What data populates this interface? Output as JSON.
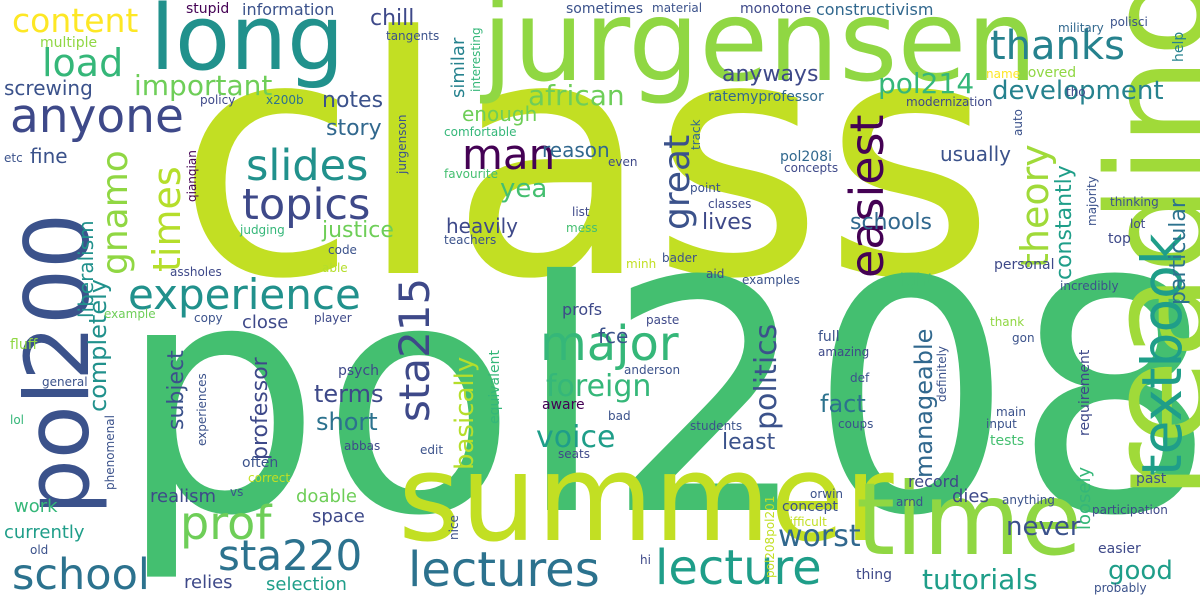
{
  "words": [
    {
      "text": "class",
      "color": "#c2df23"
    },
    {
      "text": "pol208",
      "color": "#44bf70"
    },
    {
      "text": "readings",
      "color": "#a0da39"
    },
    {
      "text": "jurgensen",
      "color": "#90d743"
    },
    {
      "text": "summer",
      "color": "#c2df23"
    },
    {
      "text": "pol200",
      "color": "#3b528b"
    },
    {
      "text": "time",
      "color": "#90d743"
    },
    {
      "text": "long",
      "color": "#21918c"
    },
    {
      "text": "textbook",
      "color": "#1f9e89"
    },
    {
      "text": "lectures",
      "color": "#2c728e"
    },
    {
      "text": "lecture",
      "color": "#1f9e89"
    },
    {
      "text": "school",
      "color": "#2c728e"
    },
    {
      "text": "anyone",
      "color": "#3e4989"
    },
    {
      "text": "experience",
      "color": "#21918c"
    },
    {
      "text": "major",
      "color": "#35b779"
    },
    {
      "text": "topics",
      "color": "#3e4989"
    },
    {
      "text": "slides",
      "color": "#21918c"
    },
    {
      "text": "prof",
      "color": "#6ece58"
    },
    {
      "text": "sta220",
      "color": "#2c728e"
    },
    {
      "text": "sta215",
      "color": "#3e4989"
    },
    {
      "text": "content",
      "color": "#fde725"
    },
    {
      "text": "load",
      "color": "#35b779"
    },
    {
      "text": "thanks",
      "color": "#26828e"
    },
    {
      "text": "man",
      "color": "#440154"
    },
    {
      "text": "great",
      "color": "#3b528b"
    },
    {
      "text": "easiest",
      "color": "#440154"
    },
    {
      "text": "theory",
      "color": "#a0da39"
    },
    {
      "text": "times",
      "color": "#b5de2b"
    },
    {
      "text": "gnamo",
      "color": "#90d743"
    },
    {
      "text": "foreign",
      "color": "#35b779"
    },
    {
      "text": "voice",
      "color": "#1f9e89"
    },
    {
      "text": "politics",
      "color": "#3b528b"
    },
    {
      "text": "african",
      "color": "#6ece58"
    },
    {
      "text": "important",
      "color": "#6ece58"
    },
    {
      "text": "pol214",
      "color": "#35b779"
    },
    {
      "text": "development",
      "color": "#26828e"
    },
    {
      "text": "worst",
      "color": "#31688e"
    },
    {
      "text": "tutorials",
      "color": "#1f9e89"
    },
    {
      "text": "good",
      "color": "#1f9e89"
    },
    {
      "text": "never",
      "color": "#3b528b"
    },
    {
      "text": "basically",
      "color": "#b5de2b"
    },
    {
      "text": "manageable",
      "color": "#31688e"
    },
    {
      "text": "particular",
      "color": "#2c728e"
    },
    {
      "text": "constantly",
      "color": "#1f9e89"
    },
    {
      "text": "yea",
      "color": "#44bf70"
    },
    {
      "text": "completely",
      "color": "#21918c"
    },
    {
      "text": "liberalism",
      "color": "#21918c"
    },
    {
      "text": "professor",
      "color": "#3e4989"
    },
    {
      "text": "subject",
      "color": "#3b528b"
    },
    {
      "text": "fce",
      "color": "#3b528b"
    },
    {
      "text": "terms",
      "color": "#3e4989"
    },
    {
      "text": "short",
      "color": "#2c728e"
    },
    {
      "text": "fact",
      "color": "#2c728e"
    },
    {
      "text": "least",
      "color": "#3b528b"
    },
    {
      "text": "notes",
      "color": "#3b528b"
    },
    {
      "text": "story",
      "color": "#31688e"
    },
    {
      "text": "enough",
      "color": "#6ece58"
    },
    {
      "text": "anyways",
      "color": "#3e4989"
    },
    {
      "text": "reason",
      "color": "#31688e"
    },
    {
      "text": "lives",
      "color": "#3e4989"
    },
    {
      "text": "schools",
      "color": "#31688e"
    },
    {
      "text": "usually",
      "color": "#3b528b"
    },
    {
      "text": "justice",
      "color": "#6ece58"
    },
    {
      "text": "heavily",
      "color": "#3e4989"
    },
    {
      "text": "screwing",
      "color": "#3b528b"
    },
    {
      "text": "chill",
      "color": "#3e4989"
    },
    {
      "text": "fine",
      "color": "#3b528b"
    },
    {
      "text": "similar",
      "color": "#26828e"
    },
    {
      "text": "constructivism",
      "color": "#31688e"
    },
    {
      "text": "sometimes",
      "color": "#3b528b"
    },
    {
      "text": "information",
      "color": "#3b528b"
    },
    {
      "text": "stupid",
      "color": "#440154"
    },
    {
      "text": "multiple",
      "color": "#90d743"
    },
    {
      "text": "material",
      "color": "#3b528b"
    },
    {
      "text": "monotone",
      "color": "#3e4989"
    },
    {
      "text": "tangents",
      "color": "#3b528b"
    },
    {
      "text": "interesting",
      "color": "#35b779"
    },
    {
      "text": "military",
      "color": "#31688e"
    },
    {
      "text": "polisci",
      "color": "#3b528b"
    },
    {
      "text": "help",
      "color": "#26828e"
    },
    {
      "text": "covered",
      "color": "#90d743"
    },
    {
      "text": "name",
      "color": "#fde725"
    },
    {
      "text": "ratemyprofessor",
      "color": "#31688e"
    },
    {
      "text": "policy",
      "color": "#3e4989"
    },
    {
      "text": "x200b",
      "color": "#2c728e"
    },
    {
      "text": "jurgenson",
      "color": "#3b528b"
    },
    {
      "text": "comfortable",
      "color": "#35b779"
    },
    {
      "text": "modernization",
      "color": "#3e4989"
    },
    {
      "text": "auto",
      "color": "#3b528b"
    },
    {
      "text": "tho",
      "color": "#3e4989"
    },
    {
      "text": "track",
      "color": "#31688e"
    },
    {
      "text": "even",
      "color": "#3e4989"
    },
    {
      "text": "pol208i",
      "color": "#31688e"
    },
    {
      "text": "concepts",
      "color": "#3e4989"
    },
    {
      "text": "favourite",
      "color": "#44bf70"
    },
    {
      "text": "point",
      "color": "#3b528b"
    },
    {
      "text": "classes",
      "color": "#3e4989"
    },
    {
      "text": "majority",
      "color": "#3b528b"
    },
    {
      "text": "thinking",
      "color": "#3b528b"
    },
    {
      "text": "lot",
      "color": "#3e4989"
    },
    {
      "text": "etc",
      "color": "#3b528b"
    },
    {
      "text": "qianqian",
      "color": "#440154"
    },
    {
      "text": "list",
      "color": "#3e4989"
    },
    {
      "text": "mess",
      "color": "#44bf70"
    },
    {
      "text": "judging",
      "color": "#35b779"
    },
    {
      "text": "code",
      "color": "#3b528b"
    },
    {
      "text": "teachers",
      "color": "#3b528b"
    },
    {
      "text": "able",
      "color": "#b5de2b"
    },
    {
      "text": "assholes",
      "color": "#3e4989"
    },
    {
      "text": "minh",
      "color": "#c2df23"
    },
    {
      "text": "bader",
      "color": "#3b528b"
    },
    {
      "text": "top",
      "color": "#3e4989"
    },
    {
      "text": "personal",
      "color": "#3e4989"
    },
    {
      "text": "incredibly",
      "color": "#3b528b"
    },
    {
      "text": "aid",
      "color": "#3e4989"
    },
    {
      "text": "examples",
      "color": "#3b528b"
    },
    {
      "text": "right",
      "color": "#44bf70"
    },
    {
      "text": "example",
      "color": "#6ece58"
    },
    {
      "text": "copy",
      "color": "#3b528b"
    },
    {
      "text": "player",
      "color": "#3e4989"
    },
    {
      "text": "close",
      "color": "#3e4989"
    },
    {
      "text": "profs",
      "color": "#3e4989"
    },
    {
      "text": "paste",
      "color": "#3e4989"
    },
    {
      "text": "fluff",
      "color": "#90d743"
    },
    {
      "text": "full",
      "color": "#3b528b"
    },
    {
      "text": "amazing",
      "color": "#3e4989"
    },
    {
      "text": "thank",
      "color": "#90d743"
    },
    {
      "text": "gon",
      "color": "#3b528b"
    },
    {
      "text": "psych",
      "color": "#3e4989"
    },
    {
      "text": "anderson",
      "color": "#3b528b"
    },
    {
      "text": "def",
      "color": "#3b528b"
    },
    {
      "text": "definitely",
      "color": "#3b528b"
    },
    {
      "text": "requirement",
      "color": "#3e4989"
    },
    {
      "text": "general",
      "color": "#3b528b"
    },
    {
      "text": "experiences",
      "color": "#3b528b"
    },
    {
      "text": "equivalent",
      "color": "#35b779"
    },
    {
      "text": "aware",
      "color": "#440154"
    },
    {
      "text": "bad",
      "color": "#3b528b"
    },
    {
      "text": "main",
      "color": "#3b528b"
    },
    {
      "text": "lol",
      "color": "#35b779"
    },
    {
      "text": "abbas",
      "color": "#3e4989"
    },
    {
      "text": "edit",
      "color": "#3b528b"
    },
    {
      "text": "input",
      "color": "#3b528b"
    },
    {
      "text": "students",
      "color": "#3b528b"
    },
    {
      "text": "coups",
      "color": "#3b528b"
    },
    {
      "text": "tests",
      "color": "#44bf70"
    },
    {
      "text": "phenomenal",
      "color": "#3b528b"
    },
    {
      "text": "seats",
      "color": "#3e4989"
    },
    {
      "text": "often",
      "color": "#3b528b"
    },
    {
      "text": "correct",
      "color": "#c2df23"
    },
    {
      "text": "vs",
      "color": "#3b528b"
    },
    {
      "text": "record",
      "color": "#3e4989"
    },
    {
      "text": "dies",
      "color": "#3e4989"
    },
    {
      "text": "realism",
      "color": "#3e4989"
    },
    {
      "text": "doable",
      "color": "#6ece58"
    },
    {
      "text": "past",
      "color": "#3b528b"
    },
    {
      "text": "arnd",
      "color": "#3b528b"
    },
    {
      "text": "anything",
      "color": "#3b528b"
    },
    {
      "text": "loosely",
      "color": "#35b779"
    },
    {
      "text": "work",
      "color": "#35b779"
    },
    {
      "text": "space",
      "color": "#3e4989"
    },
    {
      "text": "orwin",
      "color": "#3b528b"
    },
    {
      "text": "participation",
      "color": "#3e4989"
    },
    {
      "text": "currently",
      "color": "#1f9e89"
    },
    {
      "text": "nice",
      "color": "#3b528b"
    },
    {
      "text": "pol208pol201",
      "color": "#c2df23"
    },
    {
      "text": "concept",
      "color": "#3b528b"
    },
    {
      "text": "difficult",
      "color": "#c2df23"
    },
    {
      "text": "easier",
      "color": "#3e4989"
    },
    {
      "text": "old",
      "color": "#3b528b"
    },
    {
      "text": "hi",
      "color": "#3e4989"
    },
    {
      "text": "relies",
      "color": "#3e4989"
    },
    {
      "text": "selection",
      "color": "#1f9e89"
    },
    {
      "text": "thing",
      "color": "#3e4989"
    },
    {
      "text": "probably",
      "color": "#3b528b"
    }
  ]
}
